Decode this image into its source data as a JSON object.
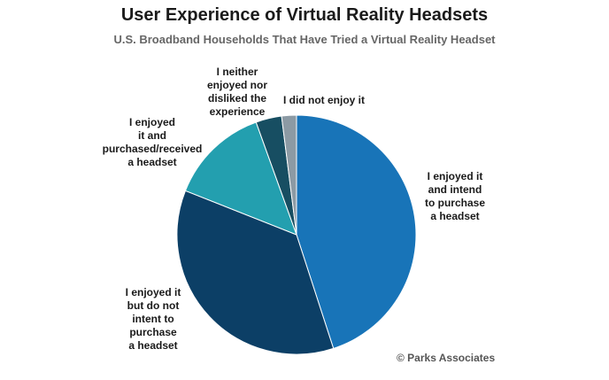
{
  "title": "User Experience of Virtual Reality Headsets",
  "subtitle": "U.S. Broadband Households That Have Tried a Virtual Reality Headset",
  "credit": "© Parks Associates",
  "chart_data": {
    "type": "pie",
    "title": "User Experience of Virtual Reality Headsets",
    "subtitle": "U.S. Broadband Households That Have Tried a Virtual Reality Headset",
    "slices": [
      {
        "label": "I enjoyed it\nand intend\nto purchase\na headset",
        "value": 45,
        "color": "#1874b8"
      },
      {
        "label": "I enjoyed it\nbut do not\nintent to\npurchase\na headset",
        "value": 36,
        "color": "#0c3f66"
      },
      {
        "label": "I enjoyed\nit and\npurchased/received\na headset",
        "value": 13.5,
        "color": "#239faf"
      },
      {
        "label": "I neither\nenjoyed nor\ndisliked the\nexperience",
        "value": 3.5,
        "color": "#174e62"
      },
      {
        "label": "I did not enjoy it",
        "value": 2,
        "color": "#8c9aa4"
      }
    ]
  }
}
